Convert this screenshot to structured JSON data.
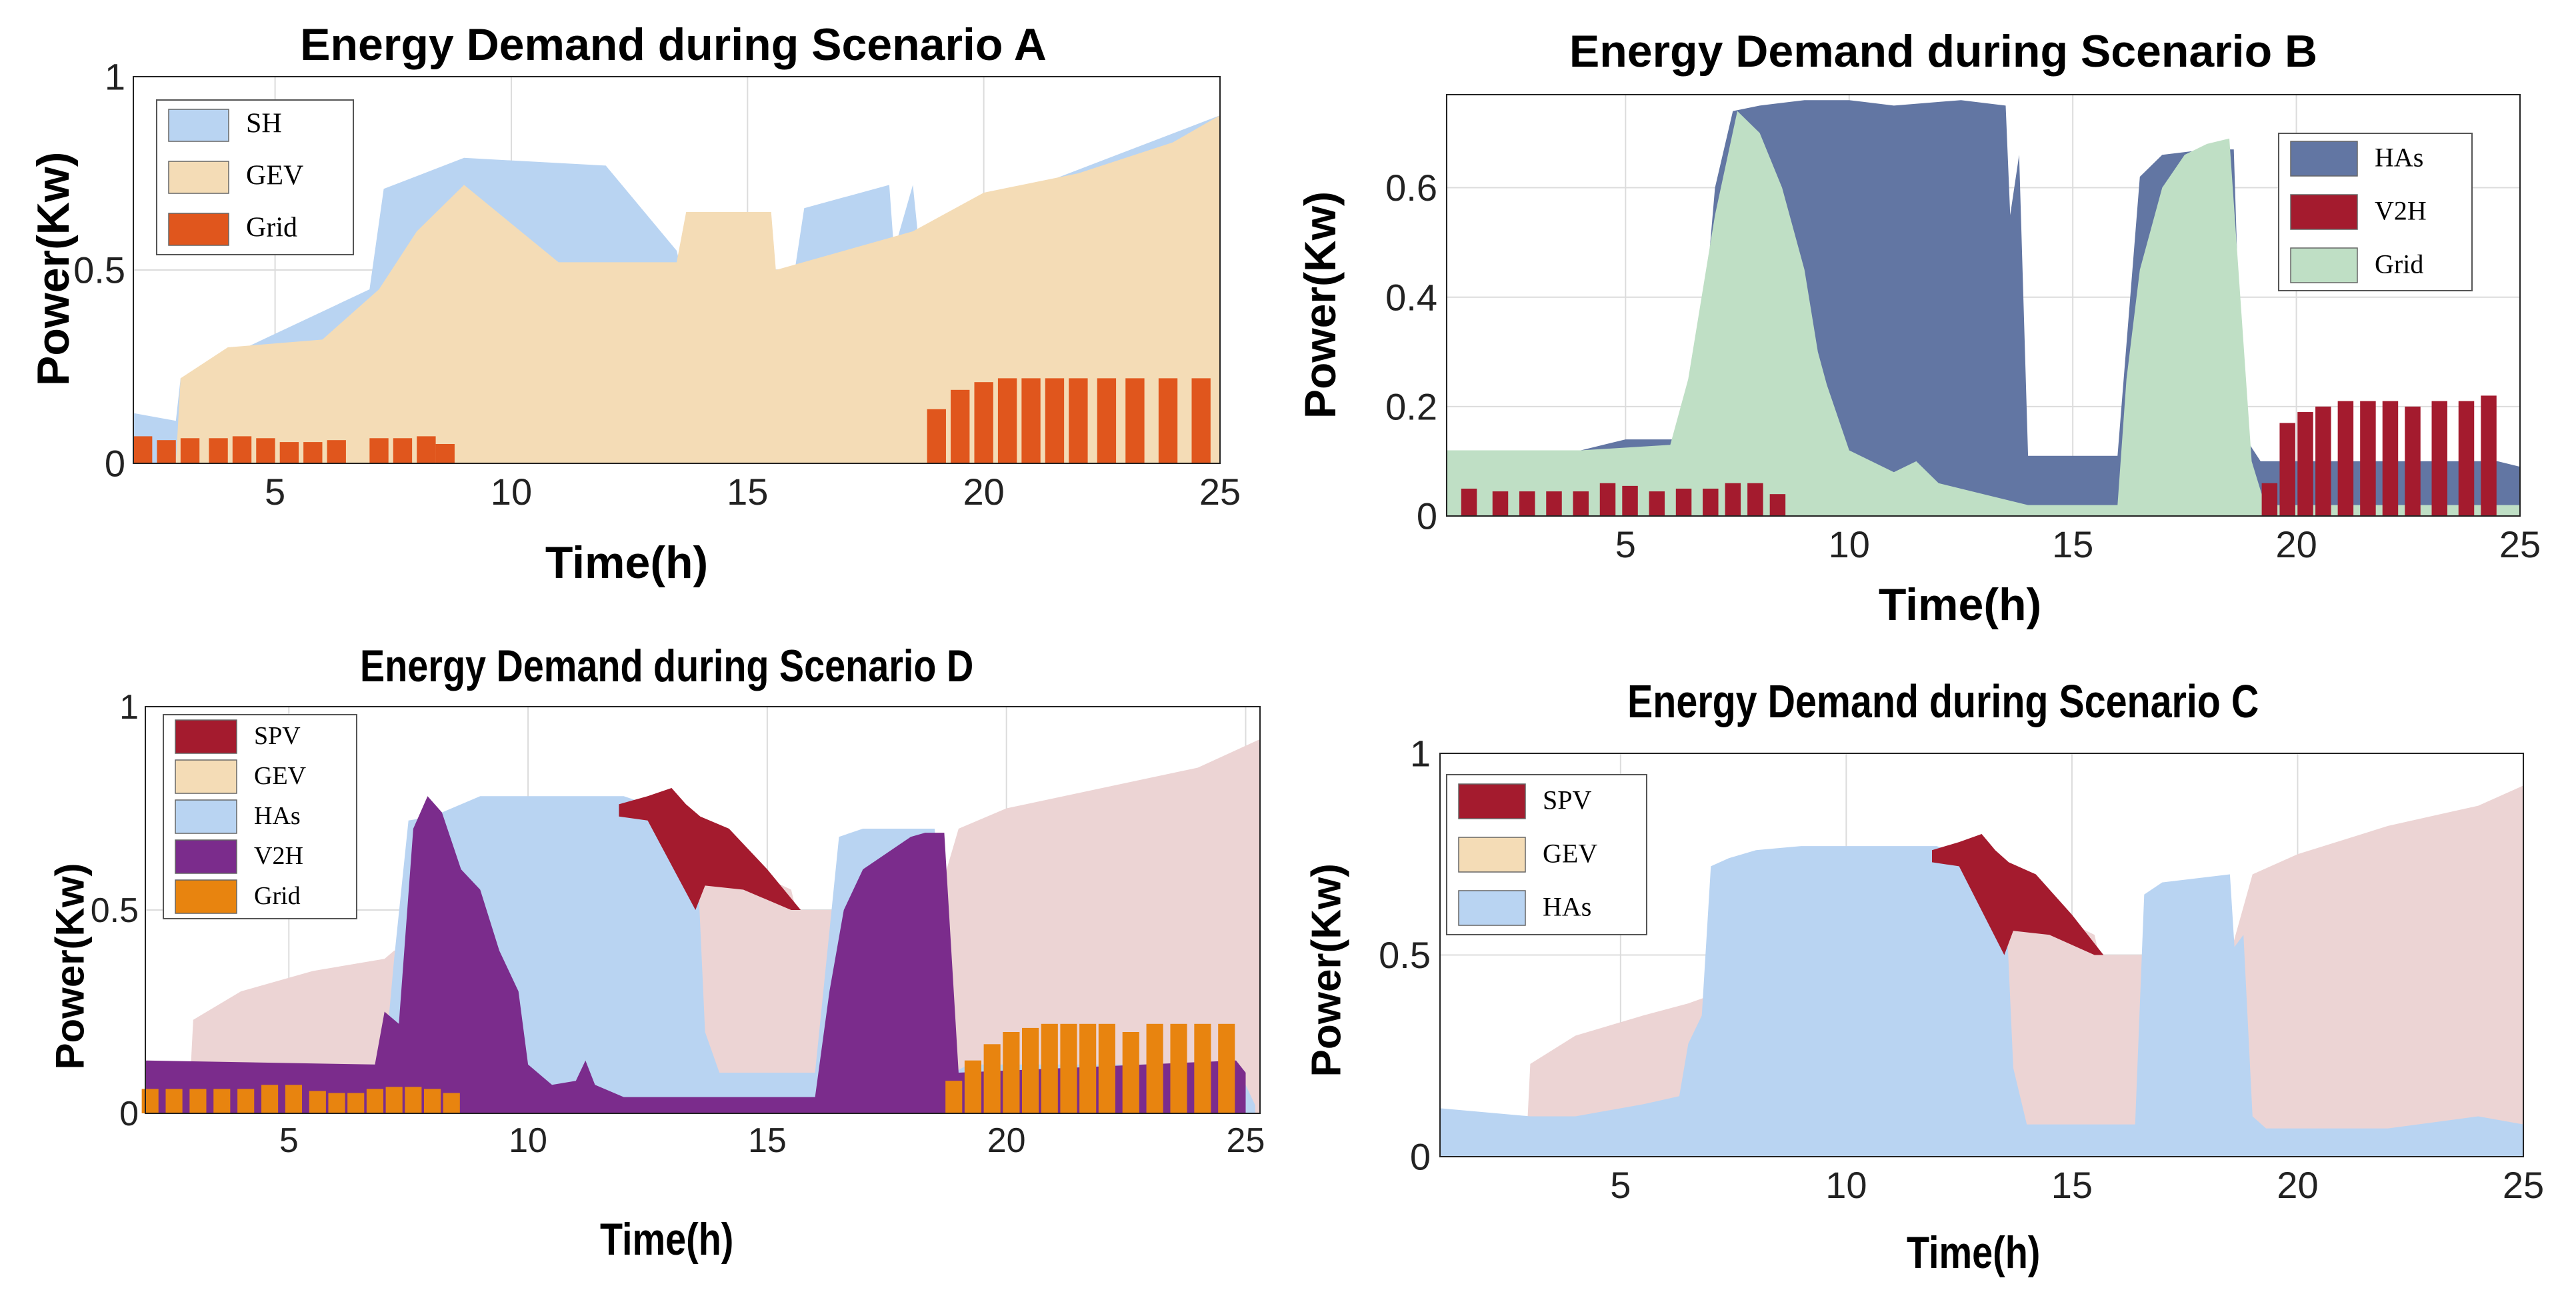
{
  "chart_data": [
    {
      "id": "A",
      "type": "area",
      "title": "Energy Demand during Scenario A",
      "xlabel": "Time(h)",
      "ylabel": "Power(Kw)",
      "xlim": [
        2,
        25
      ],
      "ylim": [
        0,
        1
      ],
      "xticks": [
        "5",
        "10",
        "15",
        "20",
        "25"
      ],
      "yticks": [
        "0",
        "0.5",
        "1"
      ],
      "grid": true,
      "legend_position": "top-left",
      "legend": [
        {
          "name": "SH",
          "color": "#b9d4f2"
        },
        {
          "name": "GEV",
          "color": "#f4dcb6"
        },
        {
          "name": "Grid",
          "color": "#e0561d"
        }
      ],
      "series": [
        {
          "name": "SH",
          "kind": "area",
          "color": "#b9d4f2",
          "x": [
            2,
            2.9,
            3.0,
            7.0,
            7.3,
            9.0,
            12.0,
            13.5,
            13.6,
            16.0,
            16.2,
            18.0,
            18.1,
            18.5,
            18.6,
            25
          ],
          "y": [
            0.13,
            0.11,
            0.22,
            0.45,
            0.71,
            0.79,
            0.77,
            0.55,
            0.5,
            0.5,
            0.66,
            0.72,
            0.55,
            0.72,
            0.6,
            0.9
          ]
        },
        {
          "name": "GEV",
          "kind": "area",
          "color": "#f4dcb6",
          "x": [
            2,
            2.9,
            3.0,
            4.0,
            6.0,
            7.2,
            8.0,
            9.0,
            11.0,
            13.5,
            13.7,
            14.0,
            15.5,
            15.6,
            18.5,
            20,
            22,
            24,
            25
          ],
          "y": [
            0,
            0,
            0.22,
            0.3,
            0.32,
            0.45,
            0.6,
            0.72,
            0.52,
            0.52,
            0.65,
            0.65,
            0.65,
            0.5,
            0.6,
            0.7,
            0.75,
            0.83,
            0.9
          ]
        },
        {
          "name": "Grid",
          "kind": "bar",
          "color": "#e0561d",
          "width": 0.4,
          "x": [
            2.2,
            2.7,
            3.2,
            3.8,
            4.3,
            4.8,
            5.3,
            5.8,
            6.3,
            7.2,
            7.7,
            8.2,
            8.6,
            19.0,
            19.5,
            20.0,
            20.5,
            21.0,
            21.5,
            22.0,
            22.6,
            23.2,
            23.9,
            24.6
          ],
          "y": [
            0.07,
            0.06,
            0.065,
            0.065,
            0.07,
            0.065,
            0.055,
            0.055,
            0.06,
            0.065,
            0.065,
            0.07,
            0.05,
            0.14,
            0.19,
            0.21,
            0.22,
            0.22,
            0.22,
            0.22,
            0.22,
            0.22,
            0.22,
            0.22
          ]
        }
      ]
    },
    {
      "id": "B",
      "type": "area",
      "title": "Energy Demand during Scenario B",
      "xlabel": "Time(h)",
      "ylabel": "Power(Kw)",
      "xlim": [
        1,
        25
      ],
      "ylim": [
        0,
        0.77
      ],
      "xticks": [
        "5",
        "10",
        "15",
        "20",
        "25"
      ],
      "yticks": [
        "0",
        "0.2",
        "0.4",
        "0.6"
      ],
      "grid": true,
      "legend_position": "top-right",
      "legend": [
        {
          "name": "HAs",
          "color": "#6276a3"
        },
        {
          "name": "V2H",
          "color": "#a41b2e"
        },
        {
          "name": "Grid",
          "color": "#bfdfc5"
        }
      ],
      "series": [
        {
          "name": "HAs",
          "kind": "area",
          "color": "#6276a3",
          "x": [
            1,
            4,
            5,
            6.3,
            6.6,
            7.0,
            7.4,
            8.0,
            9.0,
            10.0,
            11.0,
            12.5,
            13.5,
            13.6,
            13.8,
            14.0,
            16.0,
            16.5,
            17.0,
            18.0,
            18.6,
            18.8,
            19.2,
            24.5,
            25
          ],
          "y": [
            0.12,
            0.12,
            0.14,
            0.14,
            0.22,
            0.6,
            0.74,
            0.75,
            0.76,
            0.76,
            0.75,
            0.76,
            0.75,
            0.55,
            0.66,
            0.11,
            0.11,
            0.62,
            0.66,
            0.67,
            0.67,
            0.15,
            0.1,
            0.1,
            0.09
          ]
        },
        {
          "name": "Grid",
          "kind": "area",
          "color": "#bfdfc5",
          "x": [
            1,
            4,
            6.0,
            6.4,
            7.0,
            7.5,
            8.0,
            8.5,
            9.0,
            9.3,
            9.5,
            10.0,
            11.0,
            11.5,
            12.0,
            13.0,
            14.0,
            16.0,
            16.2,
            16.5,
            17.0,
            17.5,
            18.0,
            18.5,
            19.0,
            19.3,
            25
          ],
          "y": [
            0.12,
            0.12,
            0.13,
            0.25,
            0.55,
            0.74,
            0.7,
            0.6,
            0.45,
            0.3,
            0.24,
            0.12,
            0.08,
            0.1,
            0.06,
            0.04,
            0.02,
            0.02,
            0.25,
            0.45,
            0.6,
            0.66,
            0.68,
            0.69,
            0.1,
            0.02,
            0.02
          ]
        },
        {
          "name": "V2H",
          "kind": "bar",
          "color": "#a41b2e",
          "width": 0.35,
          "x": [
            1.5,
            2.2,
            2.8,
            3.4,
            4.0,
            4.6,
            5.1,
            5.7,
            6.3,
            6.9,
            7.4,
            7.9,
            8.4,
            19.4,
            19.8,
            20.2,
            20.6,
            21.1,
            21.6,
            22.1,
            22.6,
            23.2,
            23.8,
            24.3
          ],
          "y": [
            0.05,
            0.045,
            0.045,
            0.045,
            0.045,
            0.06,
            0.055,
            0.045,
            0.05,
            0.05,
            0.06,
            0.06,
            0.04,
            0.06,
            0.17,
            0.19,
            0.2,
            0.21,
            0.21,
            0.21,
            0.2,
            0.21,
            0.21,
            0.22
          ]
        }
      ]
    },
    {
      "id": "D",
      "type": "area",
      "title": "Energy Demand during Scenario D",
      "xlabel": "Time(h)",
      "ylabel": "Power(Kw)",
      "xlim": [
        2,
        25.3
      ],
      "ylim": [
        0,
        1
      ],
      "xticks": [
        "5",
        "10",
        "15",
        "20",
        "25"
      ],
      "yticks": [
        "0",
        "0.5",
        "1"
      ],
      "grid": true,
      "legend_position": "top-left",
      "legend": [
        {
          "name": "SPV",
          "color": "#a41b2e"
        },
        {
          "name": "GEV",
          "color": "#f4dcb6"
        },
        {
          "name": "HAs",
          "color": "#b9d4f2"
        },
        {
          "name": "V2H",
          "color": "#7b2c8c"
        },
        {
          "name": "Grid",
          "color": "#e8840f"
        }
      ],
      "series": [
        {
          "name": "GEV",
          "kind": "area",
          "color": "#ecd4d4",
          "x": [
            2,
            2.9,
            3.0,
            4.0,
            5.5,
            7.0,
            7.2,
            13.5,
            13.7,
            15.5,
            15.6,
            18.5,
            19.0,
            20.0,
            22.0,
            24.0,
            25.3
          ],
          "y": [
            0,
            0,
            0.23,
            0.3,
            0.35,
            0.38,
            0.4,
            0.55,
            0.65,
            0.55,
            0.5,
            0.5,
            0.7,
            0.75,
            0.8,
            0.85,
            0.92
          ]
        },
        {
          "name": "HAs",
          "kind": "area",
          "color": "#b9d4f2",
          "x": [
            2,
            7.0,
            7.2,
            7.5,
            8.0,
            9.0,
            10.0,
            12.0,
            13.5,
            13.7,
            14.0,
            16.0,
            16.5,
            17.0,
            18.5,
            18.9,
            19.2,
            24.8,
            25.2
          ],
          "y": [
            0.12,
            0.12,
            0.38,
            0.72,
            0.73,
            0.78,
            0.78,
            0.78,
            0.72,
            0.2,
            0.1,
            0.1,
            0.68,
            0.7,
            0.7,
            0.1,
            0.12,
            0.12,
            0.02
          ]
        },
        {
          "name": "SPV",
          "kind": "area",
          "color": "#a41b2e",
          "x": [
            11.9,
            12.5,
            13.0,
            13.3,
            13.6,
            14.2,
            15.0,
            15.7,
            15.5,
            14.5,
            13.7,
            13.5,
            12.5,
            11.9
          ],
          "y": [
            0.76,
            0.78,
            0.8,
            0.76,
            0.73,
            0.7,
            0.6,
            0.5,
            0.5,
            0.55,
            0.56,
            0.5,
            0.72,
            0.73
          ]
        },
        {
          "name": "V2H",
          "kind": "area",
          "color": "#7b2c8c",
          "x": [
            2,
            6.8,
            7.0,
            7.3,
            7.6,
            7.9,
            8.2,
            8.6,
            9.0,
            9.4,
            9.8,
            10.0,
            10.5,
            11.0,
            11.2,
            11.4,
            12.0,
            16.0,
            16.3,
            16.6,
            17.0,
            17.5,
            18.0,
            18.3,
            18.7,
            19.0,
            24.8,
            25.0
          ],
          "y": [
            0.13,
            0.12,
            0.25,
            0.22,
            0.7,
            0.78,
            0.74,
            0.6,
            0.55,
            0.4,
            0.3,
            0.12,
            0.07,
            0.08,
            0.13,
            0.07,
            0.04,
            0.04,
            0.3,
            0.5,
            0.6,
            0.64,
            0.68,
            0.69,
            0.69,
            0.1,
            0.13,
            0.1
          ]
        },
        {
          "name": "Grid",
          "kind": "bar",
          "color": "#e8840f",
          "width": 0.35,
          "x": [
            2.1,
            2.6,
            3.1,
            3.6,
            4.1,
            4.6,
            5.1,
            5.6,
            6.0,
            6.4,
            6.8,
            7.2,
            7.6,
            8.0,
            8.4,
            18.9,
            19.3,
            19.7,
            20.1,
            20.5,
            20.9,
            21.3,
            21.7,
            22.1,
            22.6,
            23.1,
            23.6,
            24.1,
            24.6
          ],
          "y": [
            0.06,
            0.06,
            0.06,
            0.06,
            0.06,
            0.07,
            0.07,
            0.055,
            0.05,
            0.05,
            0.06,
            0.065,
            0.065,
            0.06,
            0.05,
            0.08,
            0.13,
            0.17,
            0.2,
            0.21,
            0.22,
            0.22,
            0.22,
            0.22,
            0.2,
            0.22,
            0.22,
            0.22,
            0.22
          ]
        }
      ]
    },
    {
      "id": "C",
      "type": "area",
      "title": "Energy Demand during Scenario C",
      "xlabel": "Time(h)",
      "ylabel": "Power(Kw)",
      "xlim": [
        1,
        25
      ],
      "ylim": [
        0,
        1
      ],
      "xticks": [
        "5",
        "10",
        "15",
        "20",
        "25"
      ],
      "yticks": [
        "0",
        "0.5",
        "1"
      ],
      "grid": true,
      "legend_position": "top-left",
      "legend": [
        {
          "name": "SPV",
          "color": "#a41b2e"
        },
        {
          "name": "GEV",
          "color": "#f4dcb6"
        },
        {
          "name": "HAs",
          "color": "#b9d4f2"
        }
      ],
      "series": [
        {
          "name": "GEV",
          "kind": "area",
          "color": "#ecd4d4",
          "x": [
            1,
            2.9,
            3.0,
            4.0,
            5.5,
            6.5,
            7.0,
            13.5,
            13.7,
            15.5,
            15.6,
            18.5,
            19.0,
            20.0,
            22.0,
            24.0,
            25
          ],
          "y": [
            0,
            0,
            0.23,
            0.3,
            0.35,
            0.38,
            0.4,
            0.55,
            0.65,
            0.55,
            0.5,
            0.5,
            0.7,
            0.75,
            0.82,
            0.87,
            0.92
          ]
        },
        {
          "name": "HAs",
          "kind": "area",
          "color": "#b9d4f2",
          "x": [
            1,
            3.0,
            4.0,
            5.5,
            6.3,
            6.5,
            6.8,
            7.0,
            7.4,
            8.0,
            9.0,
            10.0,
            12.0,
            13.5,
            13.7,
            14.0,
            16.4,
            16.6,
            17.0,
            18.5,
            18.6,
            18.8,
            19.0,
            19.3,
            20.0,
            22.0,
            24.0,
            25
          ],
          "y": [
            0.12,
            0.1,
            0.1,
            0.13,
            0.15,
            0.28,
            0.35,
            0.72,
            0.74,
            0.76,
            0.77,
            0.77,
            0.77,
            0.72,
            0.22,
            0.08,
            0.08,
            0.65,
            0.68,
            0.7,
            0.52,
            0.55,
            0.1,
            0.07,
            0.07,
            0.07,
            0.1,
            0.08
          ]
        },
        {
          "name": "SPV",
          "kind": "area",
          "color": "#a41b2e",
          "x": [
            11.9,
            12.5,
            13.0,
            13.3,
            13.6,
            14.2,
            15.0,
            15.7,
            15.5,
            14.5,
            13.7,
            13.5,
            12.5,
            11.9
          ],
          "y": [
            0.76,
            0.78,
            0.8,
            0.76,
            0.73,
            0.7,
            0.6,
            0.5,
            0.5,
            0.55,
            0.56,
            0.5,
            0.72,
            0.73
          ]
        }
      ]
    }
  ]
}
